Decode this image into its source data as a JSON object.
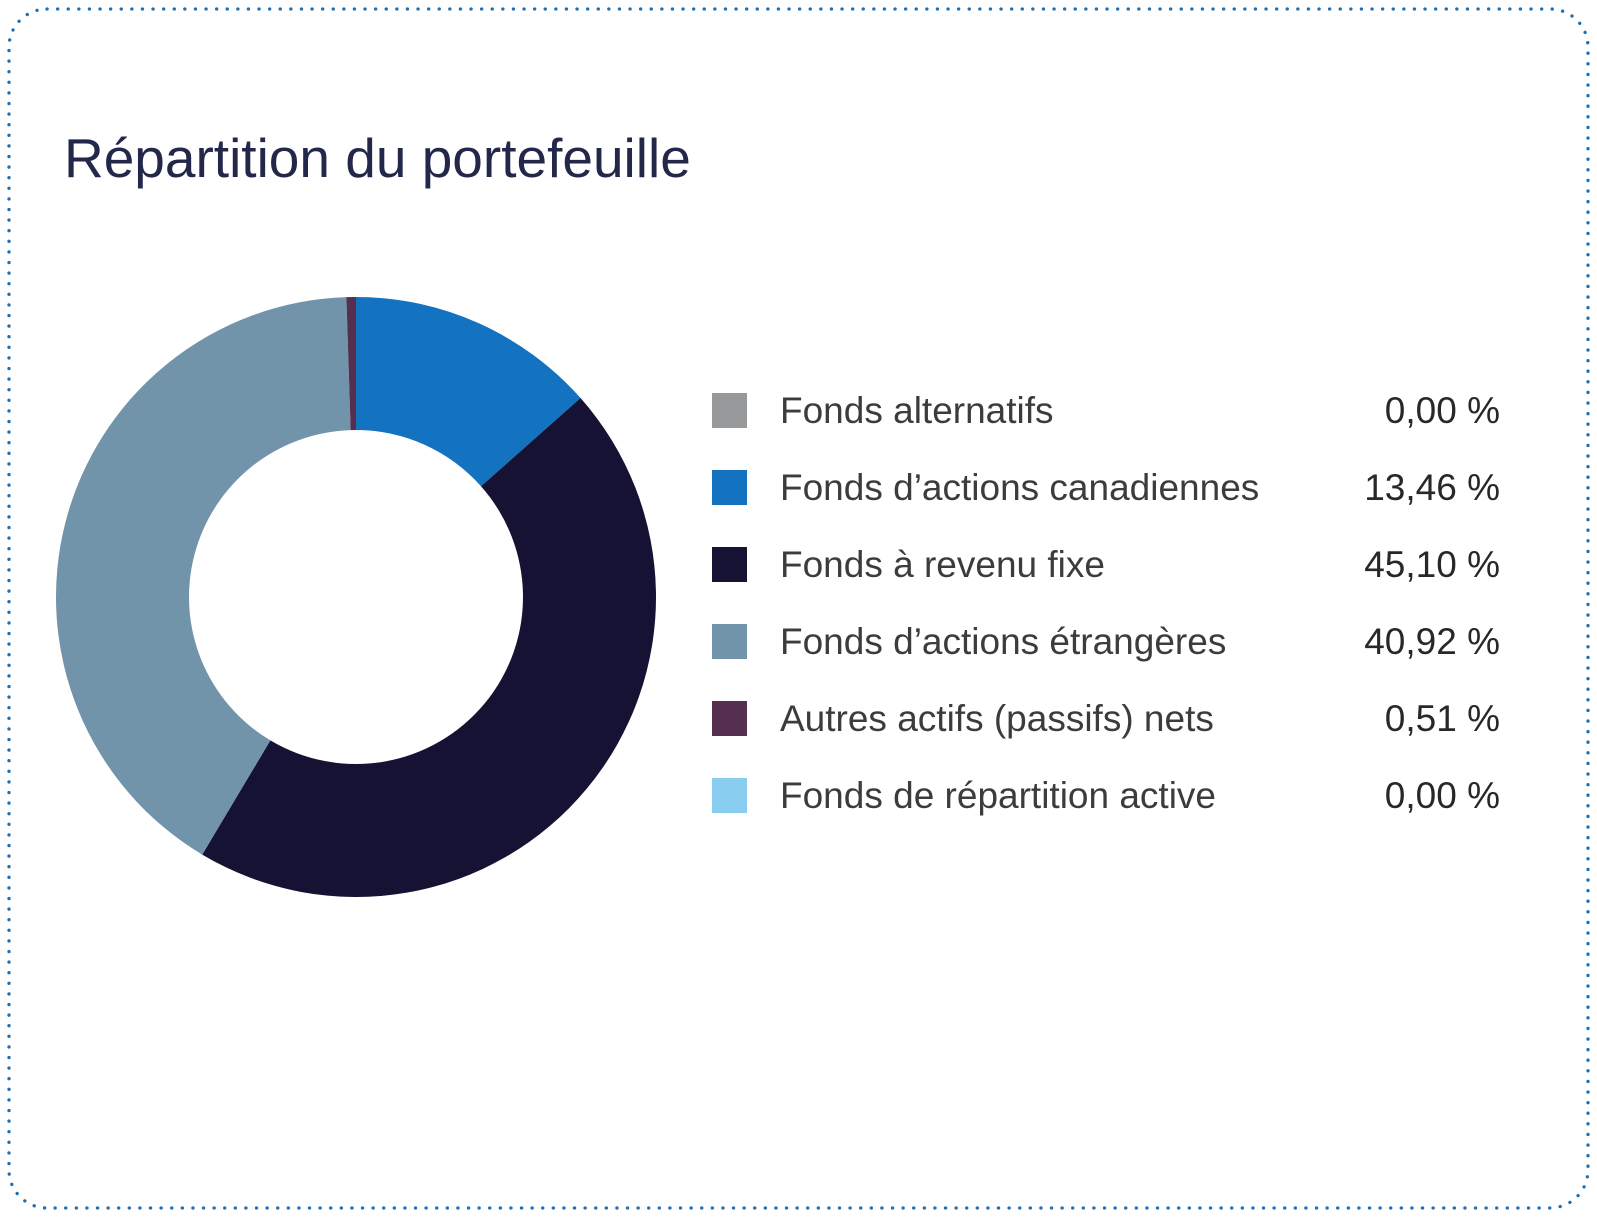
{
  "page": {
    "title": "Répartition du portefeuille"
  },
  "theme": {
    "border_color": "#1a6fb5",
    "title_color": "#23274a",
    "label_color": "#3c3c3c",
    "value_color": "#282828",
    "background": "#ffffff"
  },
  "chart_data": {
    "type": "pie",
    "subtype": "donut",
    "title": "Répartition du portefeuille",
    "inner_radius_ratio": 0.557,
    "start_angle_deg": 0,
    "direction": "clockwise",
    "legend_position": "right",
    "value_format": "percent-fr-comma",
    "series": [
      {
        "name": "Fonds alternatifs",
        "value": 0.0,
        "value_label": "0,00 %",
        "color": "#98999b"
      },
      {
        "name": "Fonds d’actions canadiennes",
        "value": 13.46,
        "value_label": "13,46 %",
        "color": "#1373c0"
      },
      {
        "name": "Fonds à revenu fixe",
        "value": 45.1,
        "value_label": "45,10 %",
        "color": "#161234"
      },
      {
        "name": "Fonds d’actions étrangères",
        "value": 40.92,
        "value_label": "40,92 %",
        "color": "#7194aa"
      },
      {
        "name": "Autres actifs (passifs) nets",
        "value": 0.51,
        "value_label": "0,51 %",
        "color": "#542f4f"
      },
      {
        "name": "Fonds de répartition active",
        "value": 0.0,
        "value_label": "0,00 %",
        "color": "#89cdf1"
      }
    ]
  }
}
